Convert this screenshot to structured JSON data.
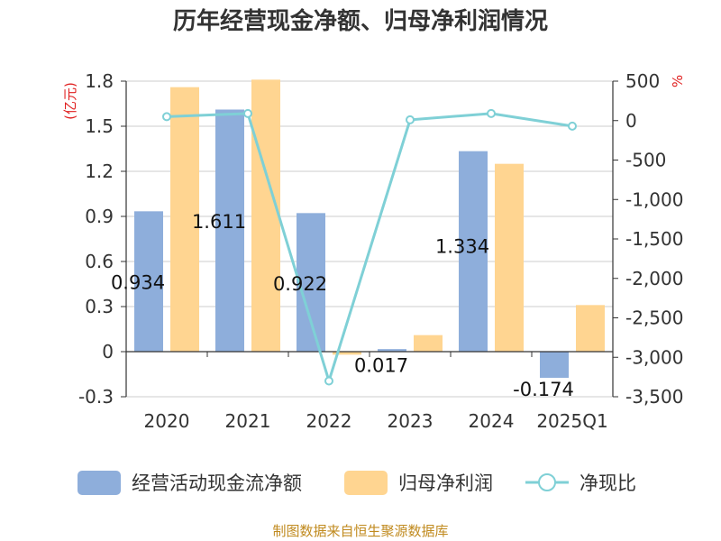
{
  "chart_data": {
    "type": "bar",
    "title": "历年经营现金净额、归母净利润情况",
    "left_unit": "(亿元)",
    "right_unit": "%",
    "categories": [
      "2020",
      "2021",
      "2022",
      "2023",
      "2024",
      "2025Q1"
    ],
    "series": [
      {
        "name": "经营活动现金流净额",
        "type": "bar",
        "axis": "left",
        "color": "#8eaedb",
        "values": [
          0.934,
          1.611,
          0.922,
          0.017,
          1.334,
          -0.174
        ],
        "labels": [
          "0.934",
          "1.611",
          "0.922",
          "0.017",
          "1.334",
          "-0.174"
        ]
      },
      {
        "name": "归母净利润",
        "type": "bar",
        "axis": "left",
        "color": "#ffd591",
        "values": [
          1.76,
          1.81,
          -0.02,
          0.11,
          1.25,
          0.31
        ]
      },
      {
        "name": "净现比",
        "type": "line",
        "axis": "right",
        "color": "#7fd0d6",
        "values": [
          50,
          90,
          -3300,
          10,
          90,
          -70
        ]
      }
    ],
    "y_left": {
      "min": -0.3,
      "max": 1.8,
      "ticks": [
        "-0.3",
        "0",
        "0.3",
        "0.6",
        "0.9",
        "1.2",
        "1.5",
        "1.8"
      ]
    },
    "y_right": {
      "min": -3500,
      "max": 500,
      "ticks": [
        "-3,500",
        "-3,000",
        "-2,500",
        "-2,000",
        "-1,500",
        "-1,000",
        "-500",
        "0",
        "500"
      ]
    },
    "grid": true,
    "legend_position": "bottom"
  },
  "source": "制图数据来自恒生聚源数据库"
}
